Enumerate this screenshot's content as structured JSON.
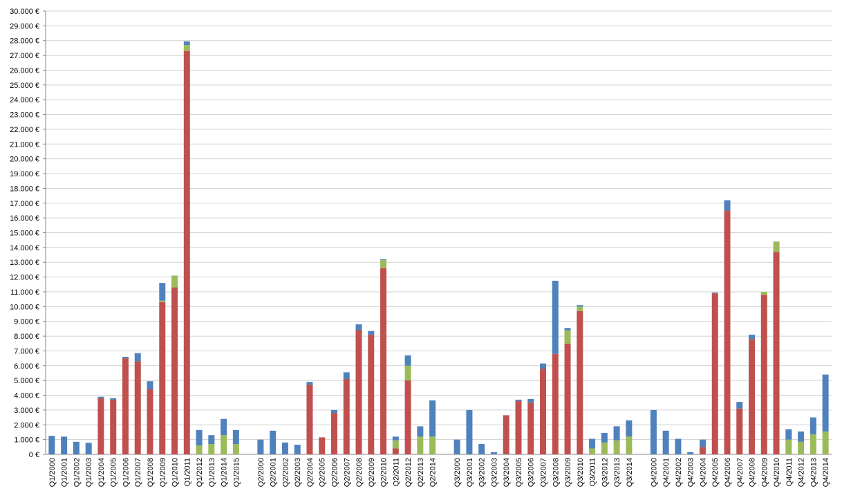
{
  "chart_data": {
    "type": "stacked_bar",
    "categories": [
      "Q1/2000",
      "Q1/2001",
      "Q1/2002",
      "Q1/2003",
      "Q1/2004",
      "Q1/2005",
      "Q1/2006",
      "Q1/2007",
      "Q1/2008",
      "Q1/2009",
      "Q1/2010",
      "Q1/2011",
      "Q1/2012",
      "Q1/2013",
      "Q1/2014",
      "Q1/2015",
      null,
      "Q2/2000",
      "Q2/2001",
      "Q2/2002",
      "Q2/2003",
      "Q2/2004",
      "Q2/2005",
      "Q2/2006",
      "Q2/2007",
      "Q2/2008",
      "Q2/2009",
      "Q2/2010",
      "Q2/2011",
      "Q2/2012",
      "Q2/2013",
      "Q2/2014",
      null,
      "Q3/2000",
      "Q3/2001",
      "Q3/2002",
      "Q3/2003",
      "Q3/2004",
      "Q3/2005",
      "Q3/2006",
      "Q3/2007",
      "Q3/2008",
      "Q3/2009",
      "Q3/2010",
      "Q3/2011",
      "Q3/2012",
      "Q3/2013",
      "Q3/2014",
      null,
      "Q4/2000",
      "Q4/2001",
      "Q4/2002",
      "Q4/2003",
      "Q4/2004",
      "Q4/2005",
      "Q4/2006",
      "Q4/2007",
      "Q4/2008",
      "Q4/2009",
      "Q4/2010",
      "Q4/2011",
      "Q4/2012",
      "Q4/2013",
      "Q4/2014"
    ],
    "series": [
      {
        "color": "#c0504d",
        "values": [
          0,
          0,
          0,
          0,
          3800,
          3700,
          6500,
          6300,
          4400,
          10300,
          11300,
          27300,
          0,
          0,
          0,
          0,
          null,
          0,
          0,
          0,
          0,
          4700,
          1150,
          2800,
          5100,
          8400,
          8100,
          12600,
          400,
          5000,
          0,
          0,
          null,
          0,
          0,
          0,
          0,
          2650,
          3600,
          3500,
          5800,
          6800,
          7500,
          9700,
          0,
          0,
          0,
          0,
          null,
          0,
          0,
          0,
          0,
          500,
          10900,
          16500,
          3100,
          7800,
          10800,
          13700,
          0,
          0,
          0,
          0
        ]
      },
      {
        "color": "#9bbb59",
        "values": [
          0,
          0,
          0,
          0,
          0,
          0,
          0,
          0,
          0,
          100,
          800,
          400,
          600,
          700,
          1300,
          700,
          null,
          0,
          0,
          0,
          0,
          0,
          0,
          0,
          0,
          0,
          0,
          550,
          550,
          1000,
          1200,
          1200,
          null,
          0,
          0,
          0,
          0,
          0,
          0,
          0,
          0,
          0,
          900,
          300,
          400,
          800,
          950,
          1200,
          null,
          0,
          0,
          0,
          0,
          0,
          0,
          0,
          0,
          0,
          200,
          700,
          1000,
          850,
          1350,
          1550
        ]
      },
      {
        "color": "#4f81bd",
        "values": [
          1250,
          1200,
          850,
          780,
          100,
          100,
          100,
          550,
          550,
          1200,
          0,
          250,
          1050,
          600,
          1100,
          950,
          null,
          1000,
          1600,
          800,
          650,
          200,
          0,
          200,
          450,
          400,
          250,
          50,
          250,
          700,
          700,
          2450,
          null,
          1000,
          3000,
          700,
          150,
          0,
          100,
          250,
          350,
          4950,
          150,
          100,
          650,
          650,
          950,
          1100,
          null,
          3000,
          1600,
          1050,
          150,
          500,
          50,
          700,
          450,
          300,
          0,
          0,
          700,
          700,
          1150,
          3850
        ]
      }
    ],
    "ylim": [
      0,
      30000
    ],
    "yticks": [
      {
        "value": 0,
        "label": "0 €"
      },
      {
        "value": 1000,
        "label": "1.000 €"
      },
      {
        "value": 2000,
        "label": "2.000 €"
      },
      {
        "value": 3000,
        "label": "3.000 €"
      },
      {
        "value": 4000,
        "label": "4.000 €"
      },
      {
        "value": 5000,
        "label": "5.000 €"
      },
      {
        "value": 6000,
        "label": "6.000 €"
      },
      {
        "value": 7000,
        "label": "7.000 €"
      },
      {
        "value": 8000,
        "label": "8.000 €"
      },
      {
        "value": 9000,
        "label": "9.000 €"
      },
      {
        "value": 10000,
        "label": "10.000 €"
      },
      {
        "value": 11000,
        "label": "11.000 €"
      },
      {
        "value": 12000,
        "label": "12.000 €"
      },
      {
        "value": 13000,
        "label": "13.000 €"
      },
      {
        "value": 14000,
        "label": "14.000 €"
      },
      {
        "value": 15000,
        "label": "15.000 €"
      },
      {
        "value": 16000,
        "label": "16.000 €"
      },
      {
        "value": 17000,
        "label": "17.000 €"
      },
      {
        "value": 18000,
        "label": "18.000 €"
      },
      {
        "value": 19000,
        "label": "19.000 €"
      },
      {
        "value": 20000,
        "label": "20.000 €"
      },
      {
        "value": 21000,
        "label": "21.000 €"
      },
      {
        "value": 22000,
        "label": "22.000 €"
      },
      {
        "value": 23000,
        "label": "23.000 €"
      },
      {
        "value": 24000,
        "label": "24.000 €"
      },
      {
        "value": 25000,
        "label": "25.000 €"
      },
      {
        "value": 26000,
        "label": "26.000 €"
      },
      {
        "value": 27000,
        "label": "27.000 €"
      },
      {
        "value": 28000,
        "label": "28.000 €"
      },
      {
        "value": 29000,
        "label": "29.000 €"
      },
      {
        "value": 30000,
        "label": "30.000 €"
      }
    ],
    "grid": true
  }
}
